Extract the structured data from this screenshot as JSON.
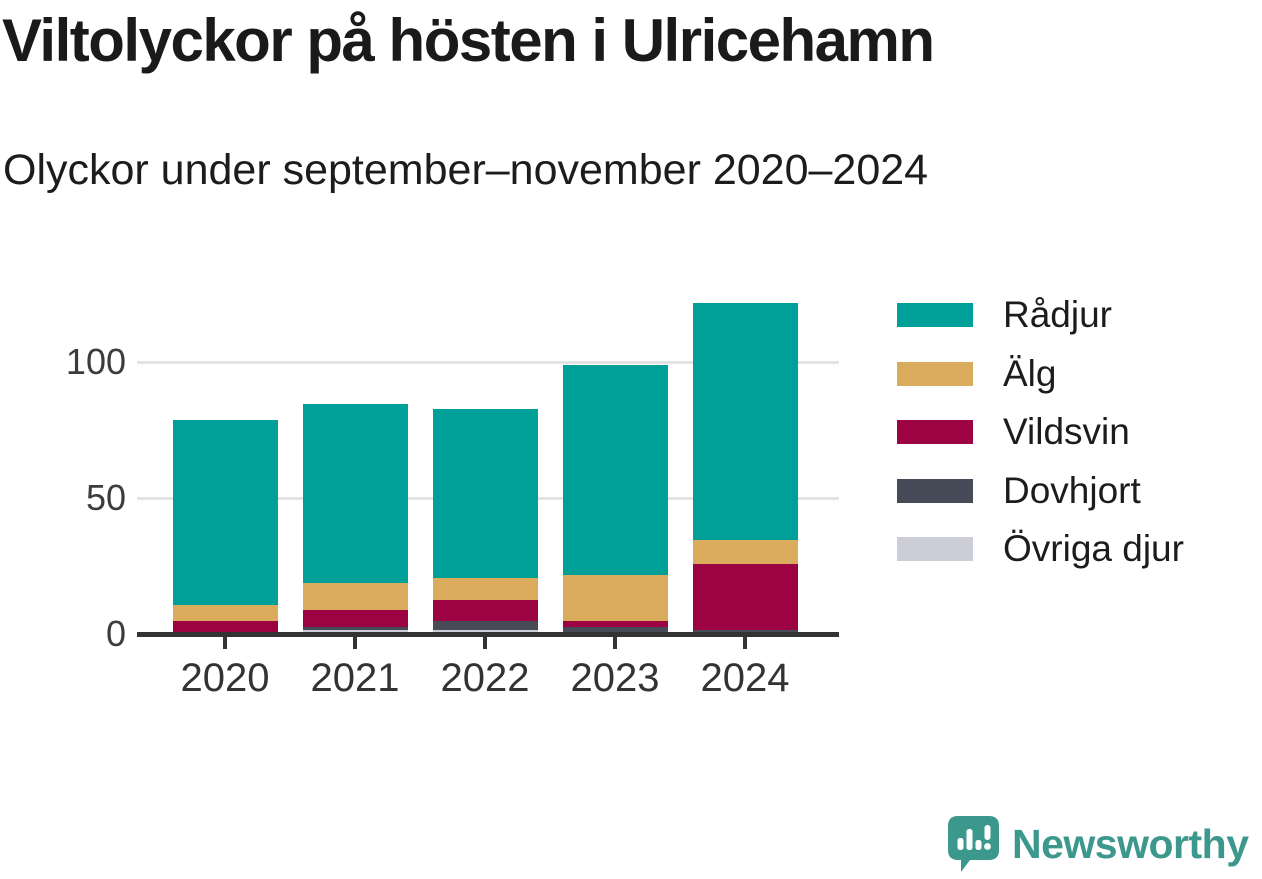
{
  "chart_data": {
    "type": "bar",
    "stacked": true,
    "title": "Viltolyckor på hösten i Ulricehamn",
    "subtitle": "Olyckor under september–november 2020–2024",
    "categories": [
      "2020",
      "2021",
      "2022",
      "2023",
      "2024"
    ],
    "series": [
      {
        "name": "Rådjur",
        "color": "#00a098",
        "values": [
          68,
          66,
          62,
          77,
          87
        ]
      },
      {
        "name": "Älg",
        "color": "#daaa5d",
        "values": [
          6,
          10,
          8,
          17,
          9
        ]
      },
      {
        "name": "Vildsvin",
        "color": "#9b0343",
        "values": [
          5,
          6,
          8,
          2,
          24
        ]
      },
      {
        "name": "Dovhjort",
        "color": "#474a57",
        "values": [
          0,
          1,
          3,
          3,
          2
        ]
      },
      {
        "name": "Övriga djur",
        "color": "#cccdd7",
        "values": [
          0,
          2,
          2,
          0,
          0
        ]
      }
    ],
    "totals_estimated": [
      79,
      85,
      83,
      99,
      122
    ],
    "xlabel": "",
    "ylabel": "",
    "yticks": [
      0,
      50,
      100
    ],
    "ylim": [
      0,
      134
    ],
    "grid": "horizontal-light",
    "legend_position": "right",
    "stack_order_bottom_to_top": [
      "Övriga djur",
      "Dovhjort",
      "Vildsvin",
      "Älg",
      "Rådjur"
    ]
  },
  "footer": {
    "brand": "Newsworthy",
    "brand_color": "#3c978d",
    "logo_icon": "speech-bubble-bar-chart-icon"
  }
}
